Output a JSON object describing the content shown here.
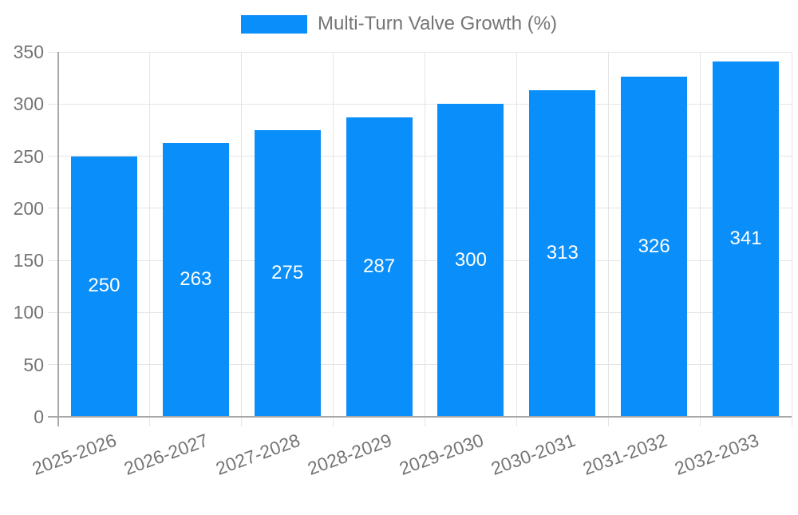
{
  "chart_data": {
    "type": "bar",
    "title": "Multi-Turn Valve Growth (%)",
    "legend": {
      "label": "Multi-Turn Valve Growth (%)",
      "position": "top"
    },
    "categories": [
      "2025-2026",
      "2026-2027",
      "2027-2028",
      "2028-2029",
      "2029-2030",
      "2030-2031",
      "2031-2032",
      "2032-2033"
    ],
    "values": [
      250,
      263,
      275,
      287,
      300,
      313,
      326,
      341
    ],
    "xlabel": "",
    "ylabel": "",
    "ylim": [
      0,
      350
    ],
    "yticks": [
      0,
      50,
      100,
      150,
      200,
      250,
      300,
      350
    ],
    "grid": true,
    "x_tick_rotation_deg": -20,
    "bar_color": "#0a8ef9",
    "bar_label_color": "#ffffff",
    "axis_text_color": "#757575",
    "gridline_color": "#e5e5e5",
    "axis_line_color": "#a8a8a8"
  }
}
